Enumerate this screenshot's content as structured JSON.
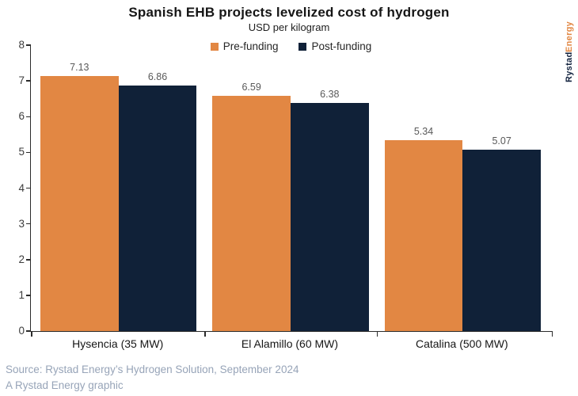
{
  "title": "Spanish EHB projects levelized cost of hydrogen",
  "subtitle": "USD per kilogram",
  "watermark": {
    "part1": "Rystad",
    "part2": "Energy"
  },
  "legend": {
    "items": [
      {
        "label": "Pre-funding",
        "color": "#E28743"
      },
      {
        "label": "Post-funding",
        "color": "#102138"
      }
    ]
  },
  "chart_data": {
    "type": "bar",
    "title": "Spanish EHB projects levelized cost of hydrogen",
    "subtitle": "USD per kilogram",
    "categories": [
      "Hysencia (35 MW)",
      "El Alamillo (60 MW)",
      "Catalina (500 MW)"
    ],
    "series": [
      {
        "name": "Pre-funding",
        "color": "#E28743",
        "values": [
          7.13,
          6.59,
          5.34
        ]
      },
      {
        "name": "Post-funding",
        "color": "#102138",
        "values": [
          6.86,
          6.38,
          5.07
        ]
      }
    ],
    "xlabel": "",
    "ylabel": "USD per kilogram",
    "ylim": [
      0,
      8
    ],
    "yticks": [
      0,
      1,
      2,
      3,
      4,
      5,
      6,
      7,
      8
    ],
    "grid": false,
    "legend_position": "top-center",
    "value_labels_decimals": 2
  },
  "source": {
    "line1": "Source: Rystad Energy’s Hydrogen Solution, September 2024",
    "line2": "A Rystad Energy graphic"
  },
  "colors": {
    "pre_funding": "#E28743",
    "post_funding": "#102138",
    "axis": "#2b2b2b",
    "source_text": "#97a4b8",
    "watermark_rystad": "#13233F",
    "watermark_energy": "#E28743"
  }
}
